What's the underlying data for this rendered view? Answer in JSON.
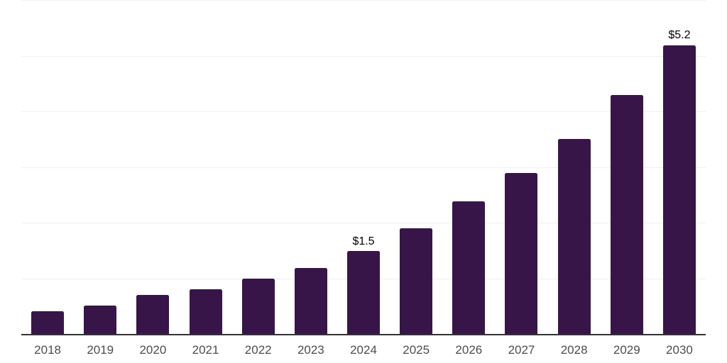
{
  "chart_data": {
    "type": "bar",
    "title": "",
    "xlabel": "",
    "ylabel": "",
    "categories": [
      "2018",
      "2019",
      "2020",
      "2021",
      "2022",
      "2023",
      "2024",
      "2025",
      "2026",
      "2027",
      "2028",
      "2029",
      "2030"
    ],
    "values": [
      0.42,
      0.52,
      0.71,
      0.81,
      1.01,
      1.2,
      1.5,
      1.91,
      2.4,
      2.9,
      3.51,
      4.3,
      5.2
    ],
    "data_labels": {
      "2024": "$1.5",
      "2030": "$5.2"
    },
    "ylim": [
      0,
      6
    ],
    "grid": true,
    "gridline_step": 1,
    "legend": false,
    "bar_color": "#371549"
  },
  "style": {
    "background": "#ffffff",
    "bar_color": "#371549",
    "axis_line_color": "#333333",
    "gridline_color": "#efefef",
    "x_label_color": "#4d4d4d",
    "data_label_color": "#000000"
  }
}
